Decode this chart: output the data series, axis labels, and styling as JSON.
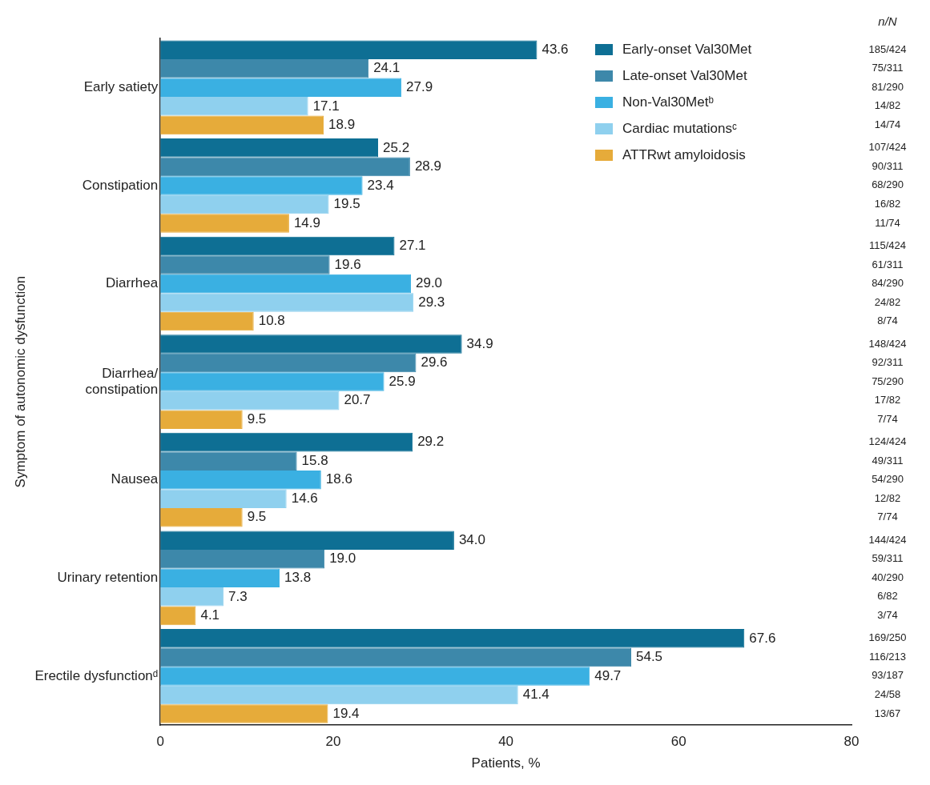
{
  "chart_data": {
    "type": "bar",
    "orientation": "horizontal",
    "xlabel": "Patients, %",
    "ylabel": "Symptom of autonomic dysfunction",
    "categories": [
      "Early satiety",
      "Constipation",
      "Diarrhea",
      "Diarrhea/\nconstipation",
      "Nausea",
      "Urinary retention",
      "Erectile dysfunctionᵈ"
    ],
    "series": [
      {
        "name": "Early-onset Val30Met",
        "color": "#0e6f94",
        "values": [
          43.6,
          25.2,
          27.1,
          34.9,
          29.2,
          34.0,
          67.6
        ],
        "value_labels": [
          "43.6",
          "25.2",
          "27.1",
          "34.9",
          "29.2",
          "34.0",
          "67.6"
        ]
      },
      {
        "name": "Late-onset Val30Met",
        "color": "#3d88aa",
        "values": [
          24.1,
          28.9,
          19.6,
          29.6,
          15.8,
          19.0,
          54.5
        ],
        "value_labels": [
          "24.1",
          "28.9",
          "19.6",
          "29.6",
          "15.8",
          "19.0",
          "54.5"
        ]
      },
      {
        "name": "Non-Val30Metᵇ",
        "color": "#3ab0e2",
        "values": [
          27.9,
          23.4,
          29.0,
          25.9,
          18.6,
          13.8,
          49.7
        ],
        "value_labels": [
          "27.9",
          "23.4",
          "29.0",
          "25.9",
          "18.6",
          "13.8",
          "49.7"
        ]
      },
      {
        "name": "Cardiac mutationsᶜ",
        "color": "#8fd0ee",
        "values": [
          17.1,
          19.5,
          29.3,
          20.7,
          14.6,
          7.3,
          41.4
        ],
        "value_labels": [
          "17.1",
          "19.5",
          "29.3",
          "20.7",
          "14.6",
          "7.3",
          "41.4"
        ]
      },
      {
        "name": "ATTRwt amyloidosis",
        "color": "#e6ab3a",
        "values": [
          18.9,
          14.9,
          10.8,
          9.5,
          9.5,
          4.1,
          19.4
        ],
        "value_labels": [
          "18.9",
          "14.9",
          "10.8",
          "9.5",
          "9.5",
          "4.1",
          "19.4"
        ]
      }
    ],
    "xlim": [
      0,
      80
    ],
    "xticks": [
      0,
      20,
      40,
      60,
      80
    ],
    "grid": false,
    "legend": "top right",
    "annotations": [
      "n/N",
      "185/424",
      "75/311",
      "81/290",
      "14/82",
      "14/74",
      "107/424",
      "90/311",
      "68/290",
      "16/82",
      "11/74",
      "115/424",
      "61/311",
      "84/290",
      "24/82",
      "8/74",
      "148/424",
      "92/311",
      "75/290",
      "17/82",
      "7/74",
      "124/424",
      "49/311",
      "54/290",
      "12/82",
      "7/74",
      "144/424",
      "59/311",
      "40/290",
      "6/82",
      "3/74",
      "169/250",
      "116/213",
      "93/187",
      "24/58",
      "13/67"
    ]
  }
}
